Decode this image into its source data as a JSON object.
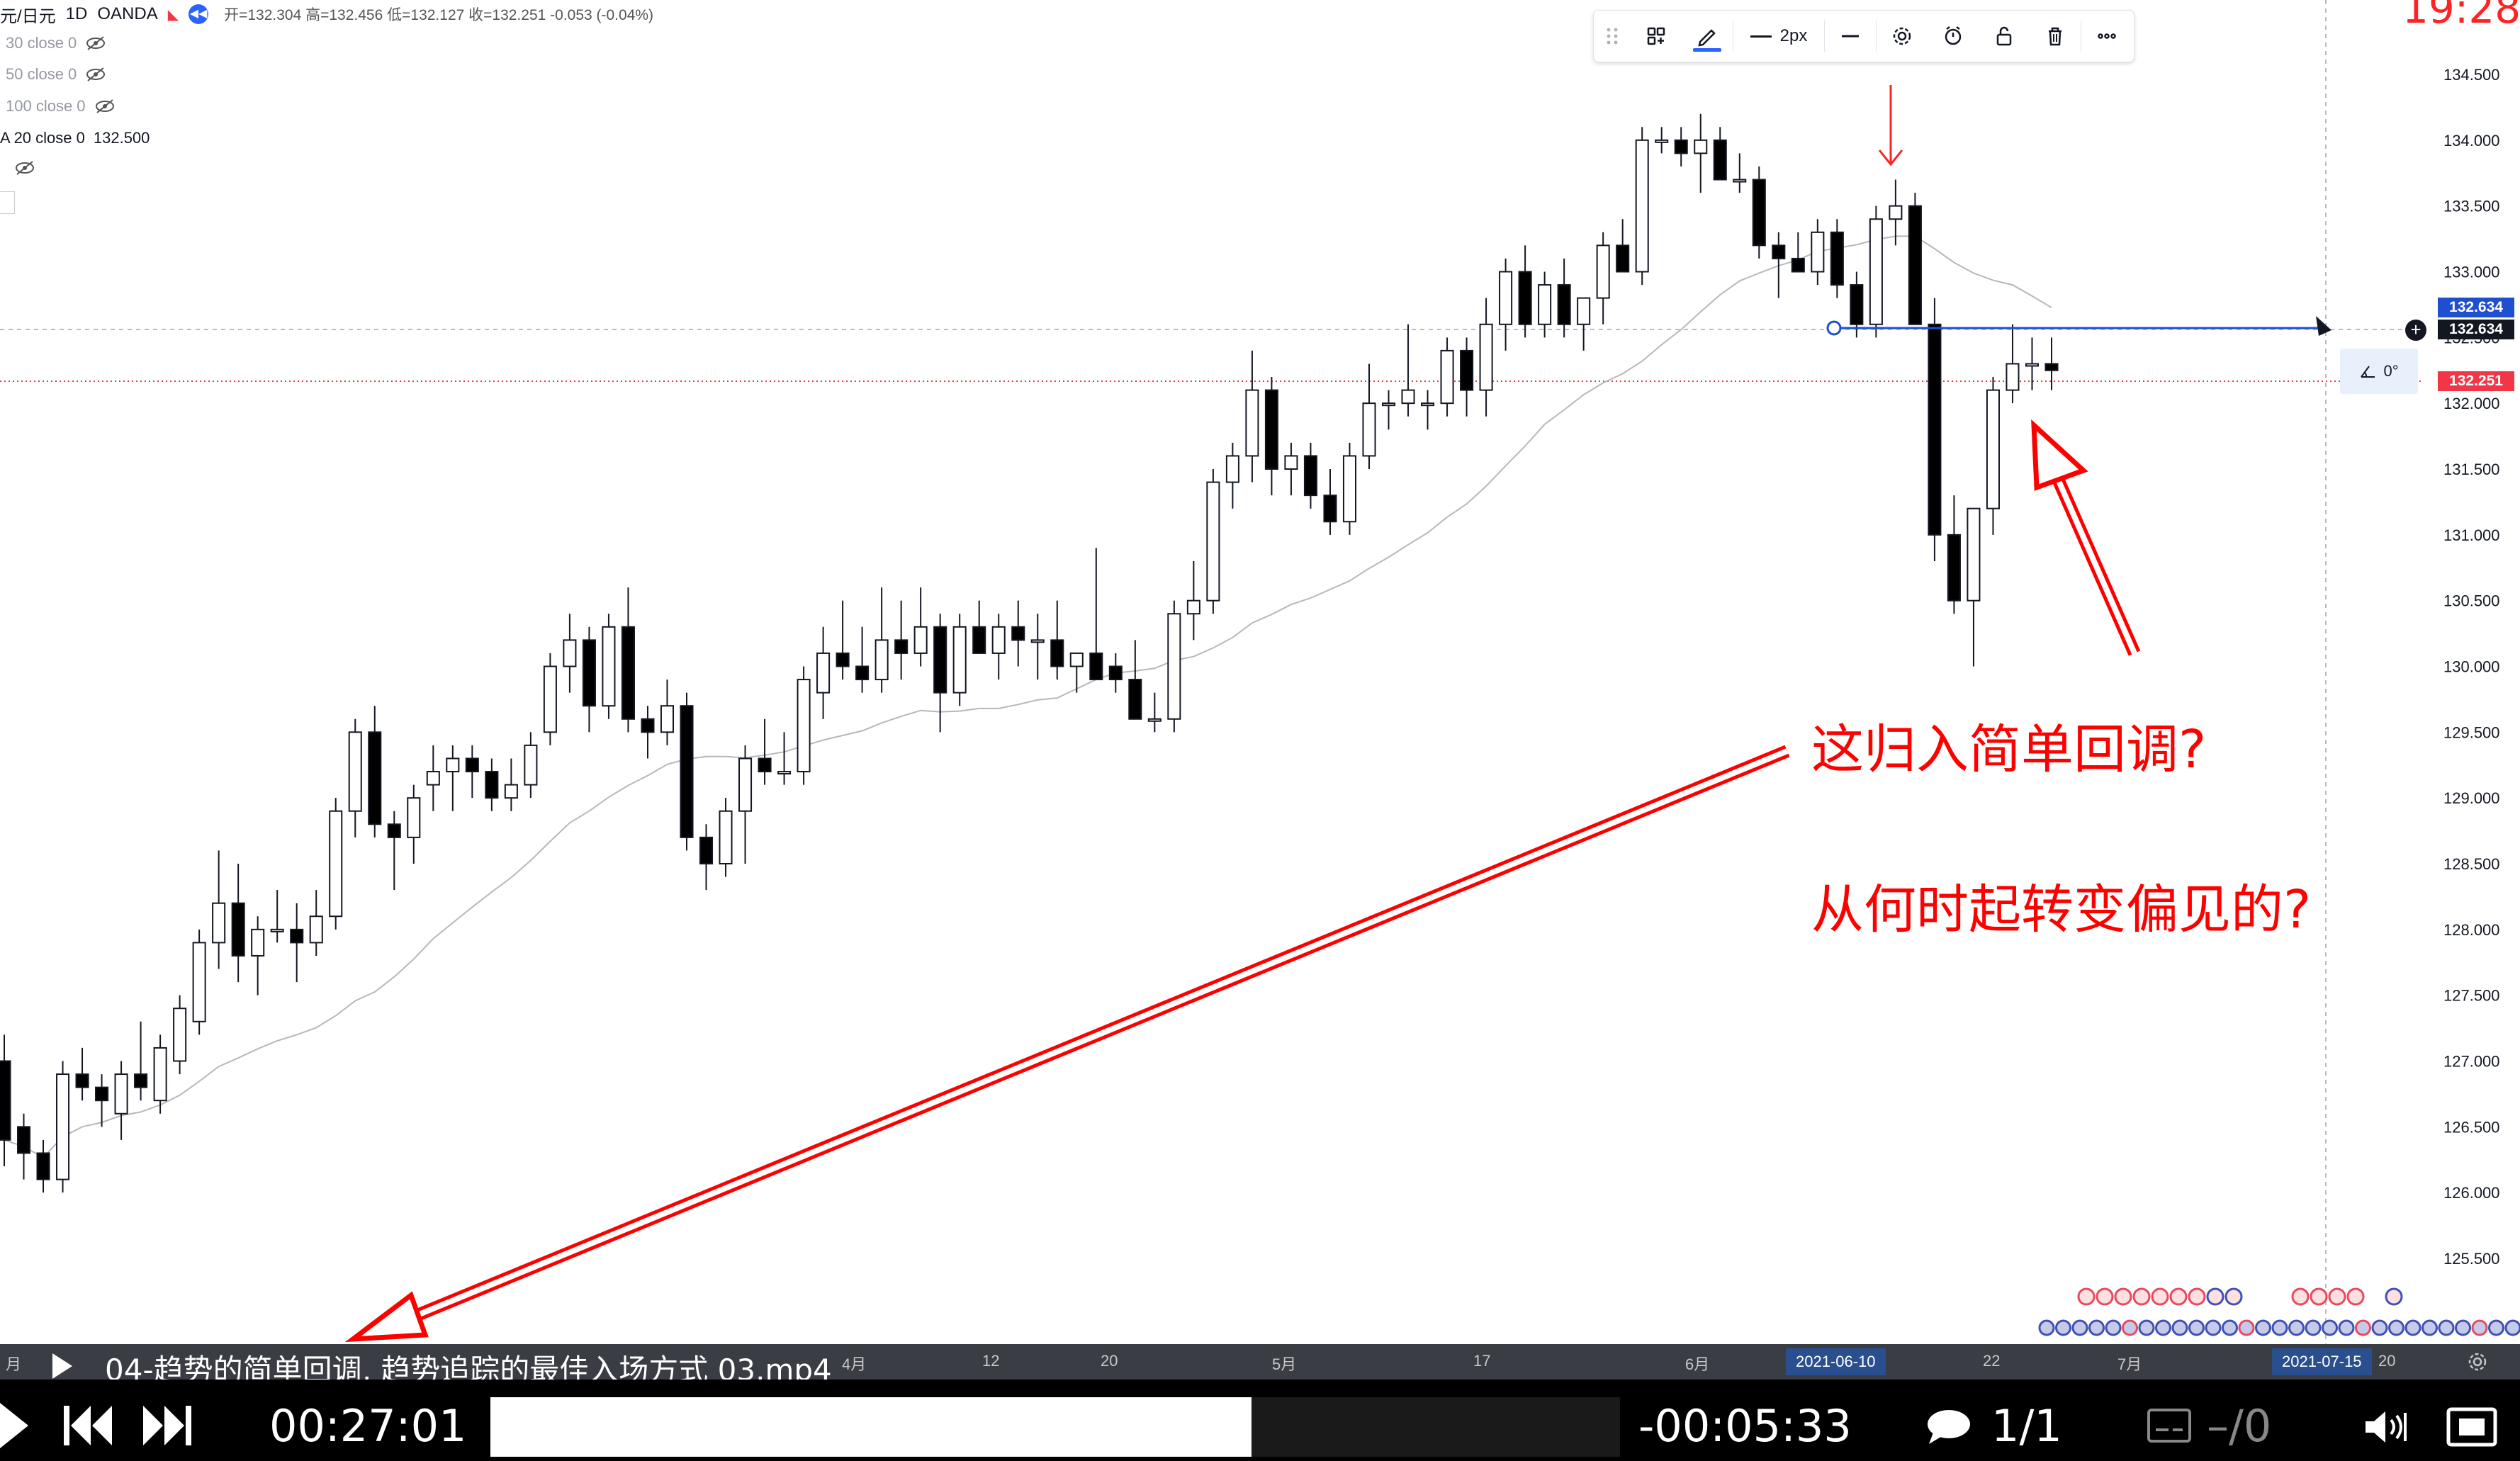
{
  "header": {
    "symbol": "元/日元",
    "interval": "1D",
    "source": "OANDA",
    "ohlc": "开=132.304  高=132.456  低=132.127  收=132.251  -0.053 (-0.04%)"
  },
  "indicators": [
    {
      "label": "30 close 0",
      "value": ""
    },
    {
      "label": "50 close 0",
      "value": ""
    },
    {
      "label": "100 close 0",
      "value": ""
    },
    {
      "label": "A 20 close 0",
      "value": "132.500"
    }
  ],
  "drawing_toolbar": {
    "line_width_label": "2px",
    "icons": [
      "drag-handle-icon",
      "object-tree-icon",
      "pencil-icon",
      "line-style-icon",
      "settings-icon",
      "alert-icon",
      "lock-icon",
      "trash-icon",
      "more-icon"
    ]
  },
  "price_axis": {
    "labels": [
      "134.500",
      "134.000",
      "133.500",
      "133.000",
      "132.500",
      "132.000",
      "131.500",
      "131.000",
      "130.500",
      "130.000",
      "129.500",
      "129.000",
      "128.500",
      "128.000",
      "127.500",
      "127.000",
      "126.500",
      "126.000",
      "125.500"
    ],
    "badge_line_top": "132.634",
    "badge_line_bottom": "132.634",
    "badge_current": "132.251",
    "line_color": "#1e4fd0",
    "current_color": "#f23645"
  },
  "angle_readout": "0°",
  "corner_number": "19:28",
  "time_axis": {
    "labels": [
      "月",
      "4月",
      "12",
      "20",
      "5月",
      "17",
      "6月",
      "22",
      "7月",
      "20"
    ],
    "highlight_dates": [
      "2021-06-10",
      "2021-07-15"
    ]
  },
  "annotations": {
    "question1": "这归入简单回调?",
    "question2": "从何时起转变偏见的?",
    "color": "#ff0000"
  },
  "video_player": {
    "title": "04-趋势的简单回调, 趋势追踪的最佳入场方式 03.mp4",
    "elapsed": "00:27:01",
    "remaining": "-00:05:33",
    "chapter": "1/1",
    "subtitle_track": "–/0",
    "progress_fraction": 0.83
  },
  "chart_data": {
    "type": "candlestick",
    "y_range": [
      125.3,
      134.8
    ],
    "candles": [
      [
        127.0,
        127.2,
        126.2,
        126.4
      ],
      [
        126.5,
        126.6,
        126.1,
        126.3
      ],
      [
        126.3,
        126.4,
        126.0,
        126.1
      ],
      [
        126.1,
        127.0,
        126.0,
        126.9
      ],
      [
        126.9,
        127.1,
        126.7,
        126.8
      ],
      [
        126.8,
        126.9,
        126.5,
        126.7
      ],
      [
        126.6,
        127.0,
        126.4,
        126.9
      ],
      [
        126.9,
        127.3,
        126.7,
        126.8
      ],
      [
        126.7,
        127.2,
        126.6,
        127.1
      ],
      [
        127.0,
        127.5,
        126.9,
        127.4
      ],
      [
        127.3,
        128.0,
        127.2,
        127.9
      ],
      [
        127.9,
        128.6,
        127.7,
        128.2
      ],
      [
        128.2,
        128.5,
        127.6,
        127.8
      ],
      [
        127.8,
        128.1,
        127.5,
        128.0
      ],
      [
        128.0,
        128.3,
        127.9,
        128.0
      ],
      [
        128.0,
        128.2,
        127.6,
        127.9
      ],
      [
        127.9,
        128.3,
        127.8,
        128.1
      ],
      [
        128.1,
        129.0,
        128.0,
        128.9
      ],
      [
        128.9,
        129.6,
        128.7,
        129.5
      ],
      [
        129.5,
        129.7,
        128.7,
        128.8
      ],
      [
        128.8,
        128.9,
        128.3,
        128.7
      ],
      [
        128.7,
        129.1,
        128.5,
        129.0
      ],
      [
        129.1,
        129.4,
        128.9,
        129.2
      ],
      [
        129.2,
        129.4,
        128.9,
        129.3
      ],
      [
        129.3,
        129.4,
        129.0,
        129.2
      ],
      [
        129.2,
        129.3,
        128.9,
        129.0
      ],
      [
        129.0,
        129.3,
        128.9,
        129.1
      ],
      [
        129.1,
        129.5,
        129.0,
        129.4
      ],
      [
        129.5,
        130.1,
        129.4,
        130.0
      ],
      [
        130.0,
        130.4,
        129.8,
        130.2
      ],
      [
        130.2,
        130.3,
        129.5,
        129.7
      ],
      [
        129.7,
        130.4,
        129.6,
        130.3
      ],
      [
        130.3,
        130.6,
        129.5,
        129.6
      ],
      [
        129.6,
        129.7,
        129.3,
        129.5
      ],
      [
        129.5,
        129.9,
        129.4,
        129.7
      ],
      [
        129.7,
        129.8,
        128.6,
        128.7
      ],
      [
        128.7,
        128.8,
        128.3,
        128.5
      ],
      [
        128.5,
        129.0,
        128.4,
        128.9
      ],
      [
        128.9,
        129.4,
        128.5,
        129.3
      ],
      [
        129.3,
        129.6,
        129.1,
        129.2
      ],
      [
        129.2,
        129.5,
        129.1,
        129.2
      ],
      [
        129.2,
        130.0,
        129.1,
        129.9
      ],
      [
        129.8,
        130.3,
        129.6,
        130.1
      ],
      [
        130.1,
        130.5,
        129.9,
        130.0
      ],
      [
        130.0,
        130.3,
        129.8,
        129.9
      ],
      [
        129.9,
        130.6,
        129.8,
        130.2
      ],
      [
        130.2,
        130.5,
        129.9,
        130.1
      ],
      [
        130.1,
        130.6,
        130.0,
        130.3
      ],
      [
        130.3,
        130.4,
        129.5,
        129.8
      ],
      [
        129.8,
        130.4,
        129.7,
        130.3
      ],
      [
        130.3,
        130.5,
        130.1,
        130.1
      ],
      [
        130.1,
        130.4,
        129.9,
        130.3
      ],
      [
        130.3,
        130.5,
        130.0,
        130.2
      ],
      [
        130.2,
        130.4,
        129.9,
        130.2
      ],
      [
        130.2,
        130.5,
        129.9,
        130.0
      ],
      [
        130.0,
        130.1,
        129.8,
        130.1
      ],
      [
        130.1,
        130.9,
        129.9,
        129.9
      ],
      [
        130.0,
        130.1,
        129.8,
        129.9
      ],
      [
        129.9,
        130.2,
        129.6,
        129.6
      ],
      [
        129.6,
        129.8,
        129.5,
        129.6
      ],
      [
        129.6,
        130.5,
        129.5,
        130.4
      ],
      [
        130.4,
        130.8,
        130.2,
        130.5
      ],
      [
        130.5,
        131.5,
        130.4,
        131.4
      ],
      [
        131.4,
        131.7,
        131.2,
        131.6
      ],
      [
        131.6,
        132.4,
        131.4,
        132.1
      ],
      [
        132.1,
        132.2,
        131.3,
        131.5
      ],
      [
        131.5,
        131.7,
        131.3,
        131.6
      ],
      [
        131.6,
        131.7,
        131.2,
        131.3
      ],
      [
        131.3,
        131.5,
        131.0,
        131.1
      ],
      [
        131.1,
        131.7,
        131.0,
        131.6
      ],
      [
        131.6,
        132.3,
        131.5,
        132.0
      ],
      [
        132.0,
        132.1,
        131.8,
        132.0
      ],
      [
        132.0,
        132.6,
        131.9,
        132.1
      ],
      [
        132.0,
        132.1,
        131.8,
        132.0
      ],
      [
        132.0,
        132.5,
        131.9,
        132.4
      ],
      [
        132.4,
        132.5,
        131.9,
        132.1
      ],
      [
        132.1,
        132.8,
        131.9,
        132.6
      ],
      [
        132.6,
        133.1,
        132.4,
        133.0
      ],
      [
        133.0,
        133.2,
        132.5,
        132.6
      ],
      [
        132.6,
        133.0,
        132.5,
        132.9
      ],
      [
        132.9,
        133.1,
        132.5,
        132.6
      ],
      [
        132.6,
        132.8,
        132.4,
        132.8
      ],
      [
        132.8,
        133.3,
        132.6,
        133.2
      ],
      [
        133.2,
        133.4,
        133.0,
        133.0
      ],
      [
        133.0,
        134.1,
        132.9,
        134.0
      ],
      [
        134.0,
        134.1,
        133.9,
        134.0
      ],
      [
        134.0,
        134.1,
        133.8,
        133.9
      ],
      [
        133.9,
        134.2,
        133.6,
        134.0
      ],
      [
        134.0,
        134.1,
        133.7,
        133.7
      ],
      [
        133.7,
        133.9,
        133.6,
        133.7
      ],
      [
        133.7,
        133.8,
        133.1,
        133.2
      ],
      [
        133.2,
        133.3,
        132.8,
        133.1
      ],
      [
        133.1,
        133.3,
        133.0,
        133.0
      ],
      [
        133.0,
        133.4,
        132.9,
        133.3
      ],
      [
        133.3,
        133.4,
        132.8,
        132.9
      ],
      [
        132.9,
        133.0,
        132.5,
        132.6
      ],
      [
        132.6,
        133.5,
        132.5,
        133.4
      ],
      [
        133.4,
        133.7,
        133.2,
        133.5
      ],
      [
        133.5,
        133.6,
        132.6,
        132.6
      ],
      [
        132.6,
        132.8,
        130.8,
        131.0
      ],
      [
        131.0,
        131.3,
        130.4,
        130.5
      ],
      [
        130.5,
        131.2,
        130.0,
        131.2
      ],
      [
        131.2,
        132.2,
        131.0,
        132.1
      ],
      [
        132.1,
        132.6,
        132.0,
        132.3
      ],
      [
        132.3,
        132.5,
        132.1,
        132.3
      ],
      [
        132.3,
        132.5,
        132.1,
        132.25
      ]
    ],
    "ma_label": "A 20 close 0"
  }
}
